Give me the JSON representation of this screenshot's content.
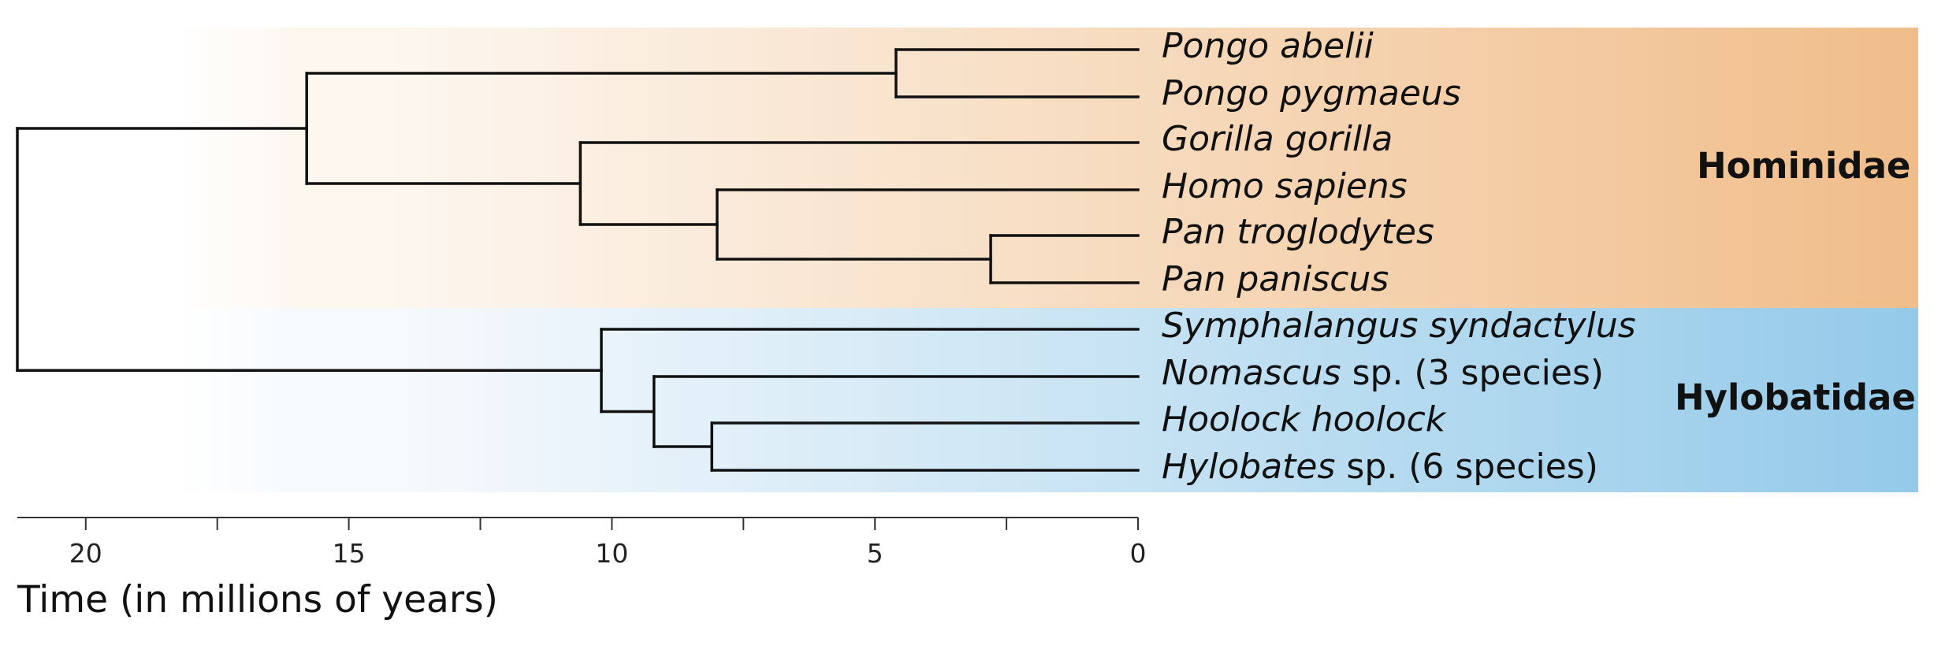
{
  "families": [
    {
      "name": "Hominidae",
      "color_start": "#fdf7f0",
      "color_end": "#f0bd8a",
      "taxa": [
        0,
        1,
        2,
        3,
        4,
        5
      ]
    },
    {
      "name": "Hylobatidae",
      "color_start": "#f7fafd",
      "color_end": "#94cae9",
      "taxa": [
        6,
        7,
        8,
        9
      ]
    }
  ],
  "taxa": [
    {
      "italic": "Pongo abelii",
      "suffix": ""
    },
    {
      "italic": "Pongo pygmaeus",
      "suffix": ""
    },
    {
      "italic": "Gorilla gorilla",
      "suffix": ""
    },
    {
      "italic": "Homo sapiens",
      "suffix": ""
    },
    {
      "italic": "Pan troglodytes",
      "suffix": ""
    },
    {
      "italic": "Pan paniscus",
      "suffix": ""
    },
    {
      "italic": "Symphalangus syndactylus",
      "suffix": ""
    },
    {
      "italic": "Nomascus",
      "suffix": " sp. (3 species)"
    },
    {
      "italic": "Hoolock hoolock",
      "suffix": ""
    },
    {
      "italic": "Hylobates",
      "suffix": " sp. (6 species)"
    }
  ],
  "tree": {
    "root": {
      "age": 21.3,
      "children": [
        {
          "age": 15.8,
          "children": [
            {
              "age": 4.6,
              "children": [
                {
                  "leaf": 0
                },
                {
                  "leaf": 1
                }
              ]
            },
            {
              "age": 10.6,
              "children": [
                {
                  "leaf": 2
                },
                {
                  "age": 8.0,
                  "children": [
                    {
                      "leaf": 3
                    },
                    {
                      "age": 2.8,
                      "children": [
                        {
                          "leaf": 4
                        },
                        {
                          "leaf": 5
                        }
                      ]
                    }
                  ]
                }
              ]
            }
          ]
        },
        {
          "age": 10.2,
          "children": [
            {
              "leaf": 6
            },
            {
              "age": 9.2,
              "children": [
                {
                  "leaf": 7
                },
                {
                  "age": 8.1,
                  "children": [
                    {
                      "leaf": 8
                    },
                    {
                      "leaf": 9
                    }
                  ]
                }
              ]
            }
          ]
        }
      ]
    }
  },
  "axis": {
    "title": "Time (in millions of years)",
    "max": 21.3,
    "min": 0,
    "major_ticks": [
      20,
      15,
      10,
      5,
      0
    ],
    "major_labels": [
      "20",
      "15",
      "10",
      "5",
      "0"
    ],
    "minor_ticks": [
      17.5,
      12.5,
      7.5,
      2.5
    ],
    "reversed": true
  }
}
